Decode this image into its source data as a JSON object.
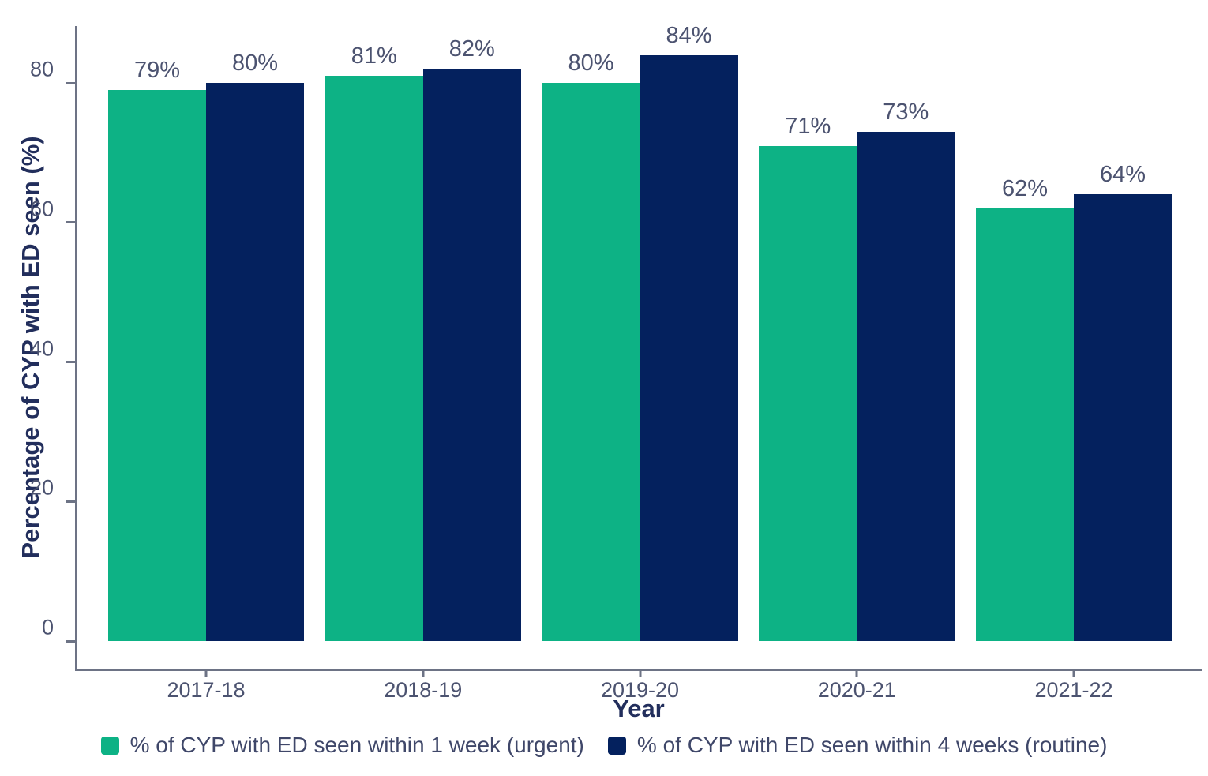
{
  "chart_data": {
    "type": "bar",
    "title": "",
    "xlabel": "Year",
    "ylabel": "Percentage of CYP with ED seen (%)",
    "categories": [
      "2017-18",
      "2018-19",
      "2019-20",
      "2020-21",
      "2021-22"
    ],
    "series": [
      {
        "name": "% of CYP with ED seen within 1 week (urgent)",
        "color": "#0db285",
        "values": [
          79,
          81,
          80,
          71,
          62
        ]
      },
      {
        "name": "% of CYP with ED seen within 4 weeks (routine)",
        "color": "#04215e",
        "values": [
          80,
          82,
          84,
          73,
          64
        ]
      }
    ],
    "value_label_suffix": "%",
    "value_labels": [
      [
        "79%",
        "81%",
        "80%",
        "71%",
        "62%"
      ],
      [
        "80%",
        "82%",
        "84%",
        "73%",
        "64%"
      ]
    ],
    "y_ticks": [
      0,
      20,
      40,
      60,
      80
    ],
    "ylim": [
      0,
      88
    ],
    "grid": false,
    "legend_position": "bottom"
  },
  "colors": {
    "axis": "#6d7385",
    "tick_label": "#4c5370",
    "value_label": "#4c5370",
    "axis_title": "#222e5c",
    "legend_text": "#3f4769",
    "series_urgent": "#0db285",
    "series_routine": "#04215e"
  }
}
